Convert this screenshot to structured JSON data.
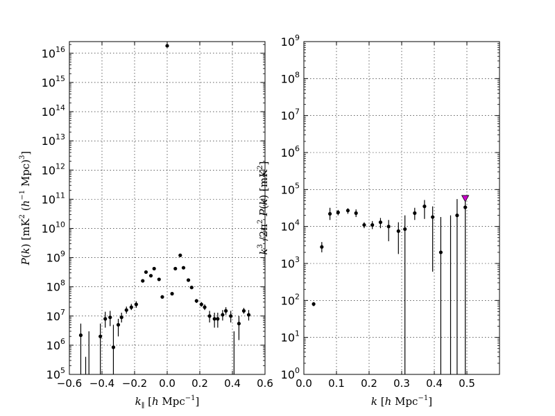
{
  "chart_data": [
    {
      "type": "scatter",
      "title": "",
      "xlabel": "k_∥ [h Mpc⁻¹]",
      "ylabel": "P(k) [mK² (h⁻¹ Mpc)³]",
      "xlim": [
        -0.6,
        0.6
      ],
      "ylim": [
        100000.0,
        3e+16
      ],
      "yscale": "log",
      "grid": true,
      "xticks": [
        -0.6,
        -0.4,
        -0.2,
        0.0,
        0.2,
        0.4,
        0.6
      ],
      "xtick_labels": [
        "−0.6",
        "−0.4",
        "−0.2",
        "0.0",
        "0.2",
        "0.4",
        "0.6"
      ],
      "ytick_exponents": [
        5,
        6,
        7,
        8,
        9,
        10,
        11,
        12,
        13,
        14,
        15,
        16
      ],
      "series": [
        {
          "marker": "dot",
          "color": "#000000",
          "points": [
            {
              "x": -0.53,
              "y": 2200000.0,
              "lo": 100000.0,
              "hi": 5500000.0
            },
            {
              "x": -0.5,
              "y": null,
              "lo": 100000.0,
              "hi": 400000.0
            },
            {
              "x": -0.48,
              "y": null,
              "lo": 100000.0,
              "hi": 3000000.0
            },
            {
              "x": -0.41,
              "y": 2000000.0,
              "lo": 100000.0,
              "hi": 5500000.0
            },
            {
              "x": -0.38,
              "y": 8000000.0,
              "lo": 4000000.0,
              "hi": 14000000.0
            },
            {
              "x": -0.35,
              "y": 9000000.0,
              "lo": 4500000.0,
              "hi": 15000000.0
            },
            {
              "x": -0.33,
              "y": 850000.0,
              "lo": 100000.0,
              "hi": 5000000.0
            },
            {
              "x": -0.3,
              "y": 5000000.0,
              "lo": 2000000.0,
              "hi": 8000000.0
            },
            {
              "x": -0.28,
              "y": 9000000.0,
              "lo": 6000000.0,
              "hi": 13000000.0
            },
            {
              "x": -0.25,
              "y": 16000000.0,
              "lo": 12000000.0,
              "hi": 21000000.0
            },
            {
              "x": -0.22,
              "y": 20000000.0,
              "lo": 16000000.0,
              "hi": 26000000.0
            },
            {
              "x": -0.19,
              "y": 25000000.0,
              "lo": 19000000.0,
              "hi": 32000000.0
            },
            {
              "x": -0.15,
              "y": 160000000.0,
              "lo": 140000000.0,
              "hi": 180000000.0
            },
            {
              "x": -0.13,
              "y": 320000000.0,
              "lo": 290000000.0,
              "hi": 350000000.0
            },
            {
              "x": -0.1,
              "y": 240000000.0,
              "lo": 220000000.0,
              "hi": 260000000.0
            },
            {
              "x": -0.08,
              "y": 420000000.0,
              "lo": 390000000.0,
              "hi": 450000000.0
            },
            {
              "x": -0.05,
              "y": 180000000.0,
              "lo": 160000000.0,
              "hi": 200000000.0
            },
            {
              "x": -0.03,
              "y": 45000000.0,
              "lo": 41000000.0,
              "hi": 49000000.0
            },
            {
              "x": 0.0,
              "y": 1.8e+16,
              "lo": 1.7e+16,
              "hi": 1.9e+16
            },
            {
              "x": 0.03,
              "y": 58000000.0,
              "lo": 53000000.0,
              "hi": 63000000.0
            },
            {
              "x": 0.05,
              "y": 420000000.0,
              "lo": 390000000.0,
              "hi": 450000000.0
            },
            {
              "x": 0.08,
              "y": 1200000000.0,
              "lo": 1100000000.0,
              "hi": 1300000000.0
            },
            {
              "x": 0.1,
              "y": 450000000.0,
              "lo": 410000000.0,
              "hi": 490000000.0
            },
            {
              "x": 0.13,
              "y": 170000000.0,
              "lo": 150000000.0,
              "hi": 190000000.0
            },
            {
              "x": 0.15,
              "y": 95000000.0,
              "lo": 85000000.0,
              "hi": 105000000.0
            },
            {
              "x": 0.18,
              "y": 33000000.0,
              "lo": 28000000.0,
              "hi": 38000000.0
            },
            {
              "x": 0.21,
              "y": 25000000.0,
              "lo": 21000000.0,
              "hi": 30000000.0
            },
            {
              "x": 0.23,
              "y": 20000000.0,
              "lo": 16000000.0,
              "hi": 25000000.0
            },
            {
              "x": 0.26,
              "y": 10000000.0,
              "lo": 6000000.0,
              "hi": 15000000.0
            },
            {
              "x": 0.29,
              "y": 8000000.0,
              "lo": 4000000.0,
              "hi": 13000000.0
            },
            {
              "x": 0.31,
              "y": 8000000.0,
              "lo": 4000000.0,
              "hi": 13000000.0
            },
            {
              "x": 0.34,
              "y": 11000000.0,
              "lo": 7000000.0,
              "hi": 16000000.0
            },
            {
              "x": 0.36,
              "y": 15000000.0,
              "lo": 11000000.0,
              "hi": 20000000.0
            },
            {
              "x": 0.39,
              "y": 10000000.0,
              "lo": 6000000.0,
              "hi": 15000000.0
            },
            {
              "x": 0.41,
              "y": null,
              "lo": 100000.0,
              "hi": 3000000.0
            },
            {
              "x": 0.44,
              "y": 5500000.0,
              "lo": 1500000.0,
              "hi": 10000000.0
            },
            {
              "x": 0.47,
              "y": 15000000.0,
              "lo": 12000000.0,
              "hi": 19000000.0
            },
            {
              "x": 0.5,
              "y": 11000000.0,
              "lo": 7000000.0,
              "hi": 16000000.0
            }
          ]
        }
      ]
    },
    {
      "type": "scatter",
      "title": "",
      "xlabel": "k [h Mpc⁻¹]",
      "ylabel": "k³/2π² P(k) [mK²]",
      "xlim": [
        0.0,
        0.6
      ],
      "ylim": [
        1,
        1000000000.0
      ],
      "yscale": "log",
      "grid": true,
      "xticks": [
        0.0,
        0.1,
        0.2,
        0.3,
        0.4,
        0.5
      ],
      "xtick_labels": [
        "0.0",
        "0.1",
        "0.2",
        "0.3",
        "0.4",
        "0.5"
      ],
      "ytick_exponents": [
        0,
        1,
        2,
        3,
        4,
        5,
        6,
        7,
        8,
        9
      ],
      "series": [
        {
          "marker": "dot",
          "color": "#000000",
          "points": [
            {
              "x": 0.03,
              "y": 80,
              "lo": 70,
              "hi": 90
            },
            {
              "x": 0.055,
              "y": 2800,
              "lo": 2000,
              "hi": 3800
            },
            {
              "x": 0.08,
              "y": 22000,
              "lo": 15000,
              "hi": 32000
            },
            {
              "x": 0.105,
              "y": 24000,
              "lo": 20000,
              "hi": 28000
            },
            {
              "x": 0.135,
              "y": 27000,
              "lo": 22000,
              "hi": 31000
            },
            {
              "x": 0.16,
              "y": 23000,
              "lo": 18000,
              "hi": 29000
            },
            {
              "x": 0.185,
              "y": 11000,
              "lo": 9000,
              "hi": 13000
            },
            {
              "x": 0.21,
              "y": 11000,
              "lo": 8500,
              "hi": 14000
            },
            {
              "x": 0.235,
              "y": 13000,
              "lo": 9000,
              "hi": 17000
            },
            {
              "x": 0.26,
              "y": 10000,
              "lo": 4000,
              "hi": 15000
            },
            {
              "x": 0.29,
              "y": 7500,
              "lo": 1800,
              "hi": 13000
            },
            {
              "x": 0.31,
              "y": 8500,
              "lo": 1,
              "hi": 20000
            },
            {
              "x": 0.34,
              "y": 23000,
              "lo": 15000,
              "hi": 32000
            },
            {
              "x": 0.37,
              "y": 35000,
              "lo": 16000,
              "hi": 52000
            },
            {
              "x": 0.395,
              "y": 18000,
              "lo": 600,
              "hi": 35000
            },
            {
              "x": 0.42,
              "y": 2000,
              "lo": 1,
              "hi": 18000
            },
            {
              "x": 0.45,
              "y": null,
              "lo": 1,
              "hi": 20000
            },
            {
              "x": 0.47,
              "y": 20000,
              "lo": 1,
              "hi": 55000
            },
            {
              "x": 0.495,
              "y": 33000,
              "lo": 1,
              "hi": 68000
            }
          ]
        },
        {
          "name": "",
          "marker": "triangle-down",
          "color": "#cc00cc",
          "points": [
            {
              "x": 0.495,
              "y": 58000
            }
          ]
        }
      ]
    }
  ]
}
